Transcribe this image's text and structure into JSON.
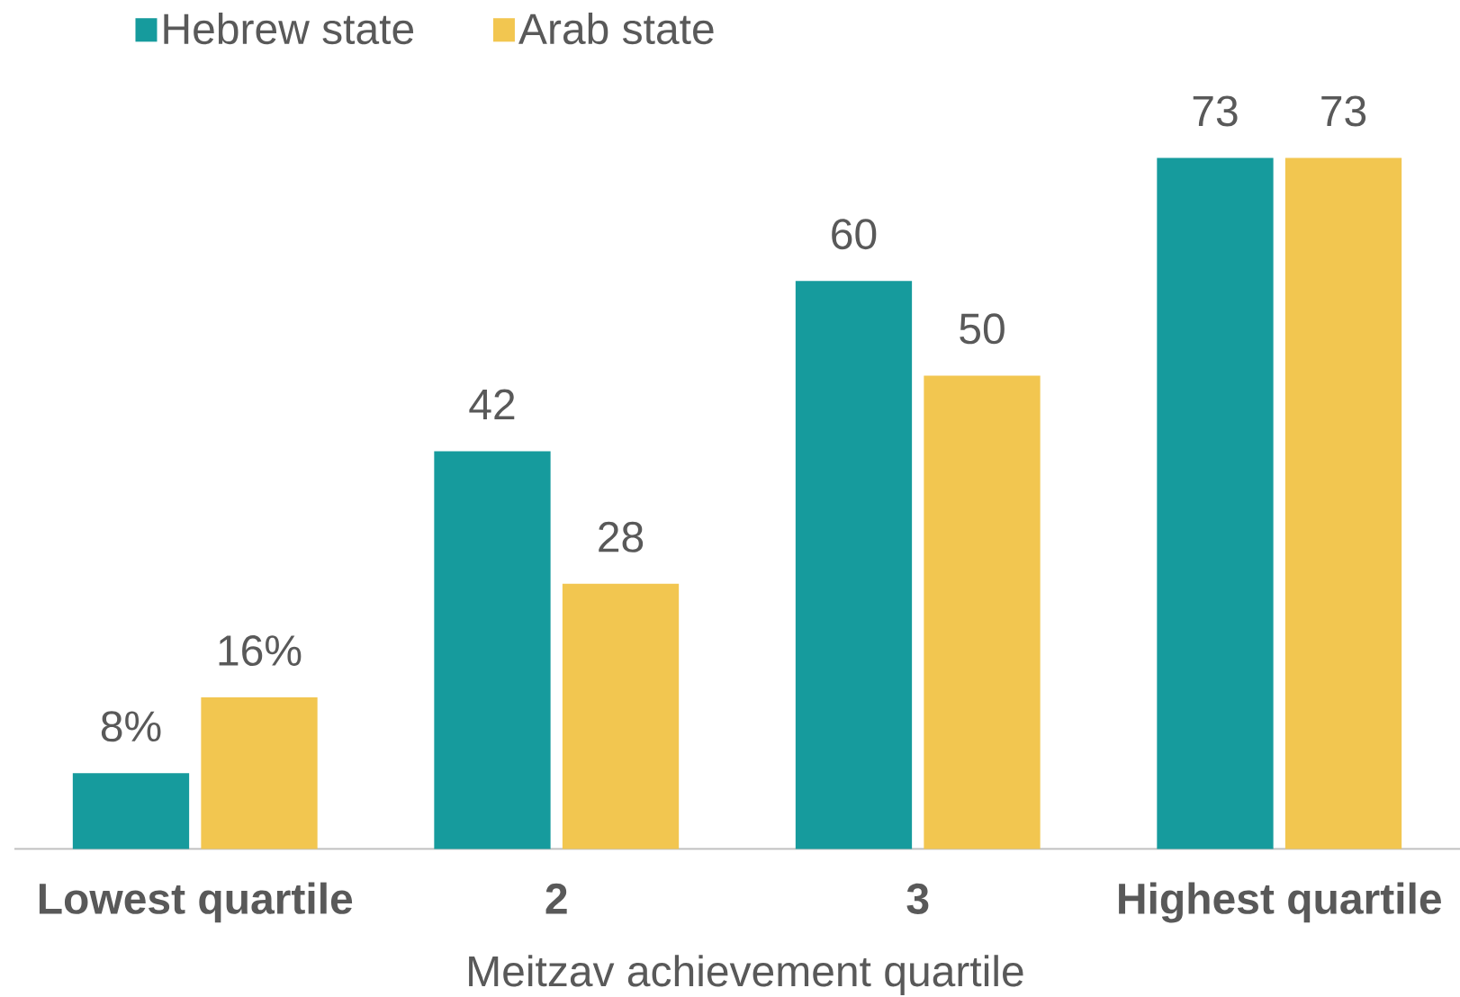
{
  "chart_data": {
    "type": "bar",
    "xlabel": "Meitzav achievement quartile",
    "categories": [
      "Lowest quartile",
      "2",
      "3",
      "Highest quartile"
    ],
    "series": [
      {
        "name": "Hebrew state",
        "color": "#169b9d",
        "values": [
          8,
          42,
          60,
          73
        ],
        "value_labels": [
          "8%",
          "42",
          "60",
          "73"
        ]
      },
      {
        "name": "Arab state",
        "color": "#f2c650",
        "values": [
          16,
          28,
          50,
          73
        ],
        "value_labels": [
          "16%",
          "28",
          "50",
          "73"
        ]
      }
    ],
    "legend": "top left",
    "tick_labels": "x"
  }
}
